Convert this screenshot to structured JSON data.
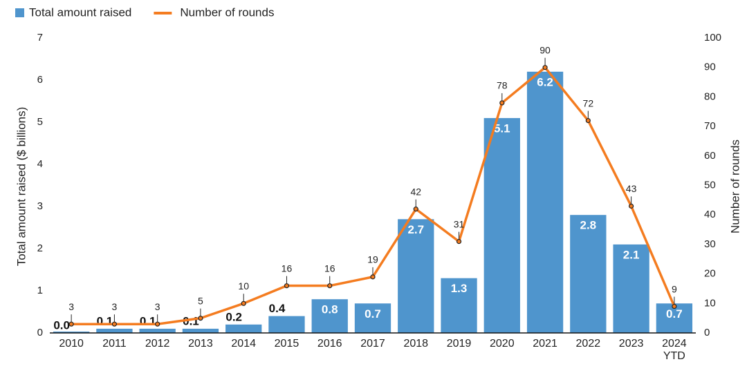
{
  "chart_data": {
    "type": "bar-line",
    "categories": [
      "2010",
      "2011",
      "2012",
      "2013",
      "2014",
      "2015",
      "2016",
      "2017",
      "2018",
      "2019",
      "2020",
      "2021",
      "2022",
      "2023",
      "2024 YTD"
    ],
    "series": [
      {
        "name": "Total amount raised",
        "type": "bar",
        "color": "#4f95cd",
        "values": [
          0,
          0.1,
          0.1,
          0.1,
          0.2,
          0.4,
          0.8,
          0.7,
          2.7,
          1.3,
          5.1,
          6.2,
          2.8,
          2.1,
          0.7
        ],
        "value_labels": [
          "0.0",
          "0.1",
          "0.1",
          "0.1",
          "0.2",
          "0.4",
          "0.8",
          "0.7",
          "2.7",
          "1.3",
          "5.1",
          "6.2",
          "2.8",
          "2.1",
          "0.7"
        ]
      },
      {
        "name": "Number of rounds",
        "type": "line",
        "axis": "y2",
        "color": "#f47c20",
        "values": [
          3,
          3,
          3,
          5,
          10,
          16,
          16,
          19,
          42,
          31,
          78,
          90,
          72,
          43,
          9
        ]
      }
    ],
    "ylabel": "Total amount raised ($ billions)",
    "y2label": "Number of rounds",
    "ylim": [
      0,
      7
    ],
    "yticks": [
      0,
      1,
      2,
      3,
      4,
      5,
      6,
      7
    ],
    "y2lim": [
      0,
      100
    ],
    "y2ticks": [
      0,
      10,
      20,
      30,
      40,
      50,
      60,
      70,
      80,
      90,
      100
    ],
    "grid": false,
    "legend": "top-left"
  }
}
